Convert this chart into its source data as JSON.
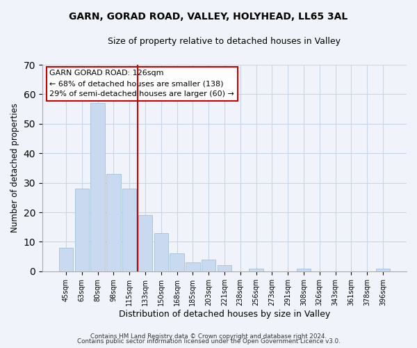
{
  "title": "GARN, GORAD ROAD, VALLEY, HOLYHEAD, LL65 3AL",
  "subtitle": "Size of property relative to detached houses in Valley",
  "xlabel": "Distribution of detached houses by size in Valley",
  "ylabel": "Number of detached properties",
  "bar_color": "#c8d9f0",
  "bar_edge_color": "#a8c4e0",
  "bin_labels": [
    "45sqm",
    "63sqm",
    "80sqm",
    "98sqm",
    "115sqm",
    "133sqm",
    "150sqm",
    "168sqm",
    "185sqm",
    "203sqm",
    "221sqm",
    "238sqm",
    "256sqm",
    "273sqm",
    "291sqm",
    "308sqm",
    "326sqm",
    "343sqm",
    "361sqm",
    "378sqm",
    "396sqm"
  ],
  "bar_heights": [
    8,
    28,
    57,
    33,
    28,
    19,
    13,
    6,
    3,
    4,
    2,
    0,
    1,
    0,
    0,
    1,
    0,
    0,
    0,
    0,
    1
  ],
  "vline_color": "#cc0000",
  "ylim": [
    0,
    70
  ],
  "yticks": [
    0,
    10,
    20,
    30,
    40,
    50,
    60,
    70
  ],
  "annotation_title": "GARN GORAD ROAD: 126sqm",
  "annotation_line1": "← 68% of detached houses are smaller (138)",
  "annotation_line2": "29% of semi-detached houses are larger (60) →",
  "footer1": "Contains HM Land Registry data © Crown copyright and database right 2024.",
  "footer2": "Contains public sector information licensed under the Open Government Licence v3.0.",
  "background_color": "#f0f4fa",
  "grid_color": "#c8d4e8"
}
